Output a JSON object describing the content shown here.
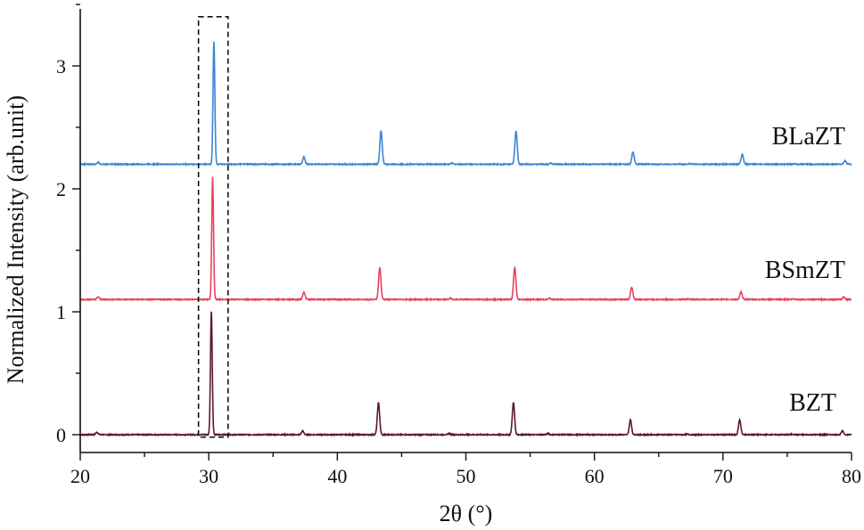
{
  "chart_data": {
    "type": "line",
    "xlabel": "2θ (°)",
    "ylabel": "Normalized Intensity (arb.unit)",
    "xlim": [
      20,
      80
    ],
    "ylim": [
      -0.05,
      3.5
    ],
    "x_ticks": [
      20,
      30,
      40,
      50,
      60,
      70,
      80
    ],
    "y_ticks": [
      0,
      1,
      2,
      3
    ],
    "grid": false,
    "legend": "labels placed beside each trace",
    "peaks_2theta": [
      21.4,
      30.3,
      37.4,
      43.3,
      48.8,
      53.8,
      56.5,
      62.9,
      67.3,
      71.4,
      75.5,
      79.4
    ],
    "series": [
      {
        "name": "BZT",
        "color": "#5a1a28",
        "baseline": 0.0,
        "peaks": [
          {
            "x": 21.3,
            "y": 0.02
          },
          {
            "x": 30.2,
            "y": 1.0
          },
          {
            "x": 37.3,
            "y": 0.03
          },
          {
            "x": 43.2,
            "y": 0.26
          },
          {
            "x": 48.7,
            "y": 0.01
          },
          {
            "x": 53.7,
            "y": 0.26
          },
          {
            "x": 56.4,
            "y": 0.01
          },
          {
            "x": 62.8,
            "y": 0.12
          },
          {
            "x": 67.2,
            "y": 0.005
          },
          {
            "x": 71.3,
            "y": 0.12
          },
          {
            "x": 75.4,
            "y": 0.005
          },
          {
            "x": 79.3,
            "y": 0.03
          }
        ]
      },
      {
        "name": "BSmZT",
        "color": "#e8425e",
        "baseline": 1.1,
        "peaks": [
          {
            "x": 21.4,
            "y": 0.02
          },
          {
            "x": 30.3,
            "y": 1.0
          },
          {
            "x": 37.4,
            "y": 0.06
          },
          {
            "x": 43.3,
            "y": 0.26
          },
          {
            "x": 48.8,
            "y": 0.01
          },
          {
            "x": 53.8,
            "y": 0.26
          },
          {
            "x": 56.5,
            "y": 0.01
          },
          {
            "x": 62.9,
            "y": 0.1
          },
          {
            "x": 67.3,
            "y": 0.005
          },
          {
            "x": 71.4,
            "y": 0.06
          },
          {
            "x": 75.5,
            "y": 0.005
          },
          {
            "x": 79.4,
            "y": 0.02
          }
        ]
      },
      {
        "name": "BLaZT",
        "color": "#3b86d4",
        "baseline": 2.2,
        "peaks": [
          {
            "x": 21.4,
            "y": 0.015
          },
          {
            "x": 30.4,
            "y": 1.0
          },
          {
            "x": 37.4,
            "y": 0.06
          },
          {
            "x": 43.4,
            "y": 0.27
          },
          {
            "x": 48.9,
            "y": 0.01
          },
          {
            "x": 53.9,
            "y": 0.27
          },
          {
            "x": 56.6,
            "y": 0.01
          },
          {
            "x": 63.0,
            "y": 0.1
          },
          {
            "x": 67.4,
            "y": 0.005
          },
          {
            "x": 71.5,
            "y": 0.08
          },
          {
            "x": 75.6,
            "y": 0.005
          },
          {
            "x": 79.5,
            "y": 0.03
          }
        ]
      }
    ],
    "annotation": {
      "type": "dashed-box",
      "x_range": [
        29.2,
        31.5
      ],
      "y_range": [
        -0.02,
        3.4
      ]
    }
  }
}
